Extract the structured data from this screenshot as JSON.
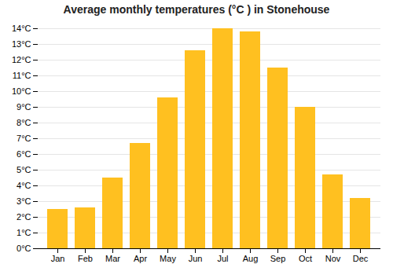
{
  "chart_data": {
    "type": "bar",
    "title": "Average monthly temperatures (°C ) in Stonehouse",
    "categories": [
      "Jan",
      "Feb",
      "Mar",
      "Apr",
      "May",
      "Jun",
      "Jul",
      "Aug",
      "Sep",
      "Oct",
      "Nov",
      "Dec"
    ],
    "values": [
      2.5,
      2.6,
      4.5,
      6.7,
      9.6,
      12.6,
      14.0,
      13.8,
      11.5,
      9.0,
      4.7,
      3.2
    ],
    "color": "#FFC020",
    "ylim": [
      0,
      14
    ],
    "yticks": [
      {
        "value": 0,
        "label": "0°C"
      },
      {
        "value": 1,
        "label": "1°C"
      },
      {
        "value": 2,
        "label": "2°C"
      },
      {
        "value": 3,
        "label": "3°C"
      },
      {
        "value": 4,
        "label": "4°C"
      },
      {
        "value": 5,
        "label": "5°C"
      },
      {
        "value": 6,
        "label": "6°C"
      },
      {
        "value": 7,
        "label": "7°C"
      },
      {
        "value": 8,
        "label": "8°C"
      },
      {
        "value": 9,
        "label": "9°C"
      },
      {
        "value": 10,
        "label": "10°C"
      },
      {
        "value": 11,
        "label": "11°C"
      },
      {
        "value": 12,
        "label": "12°C"
      },
      {
        "value": 13,
        "label": "13°C"
      },
      {
        "value": 14,
        "label": "14°C"
      }
    ],
    "grid": true
  }
}
